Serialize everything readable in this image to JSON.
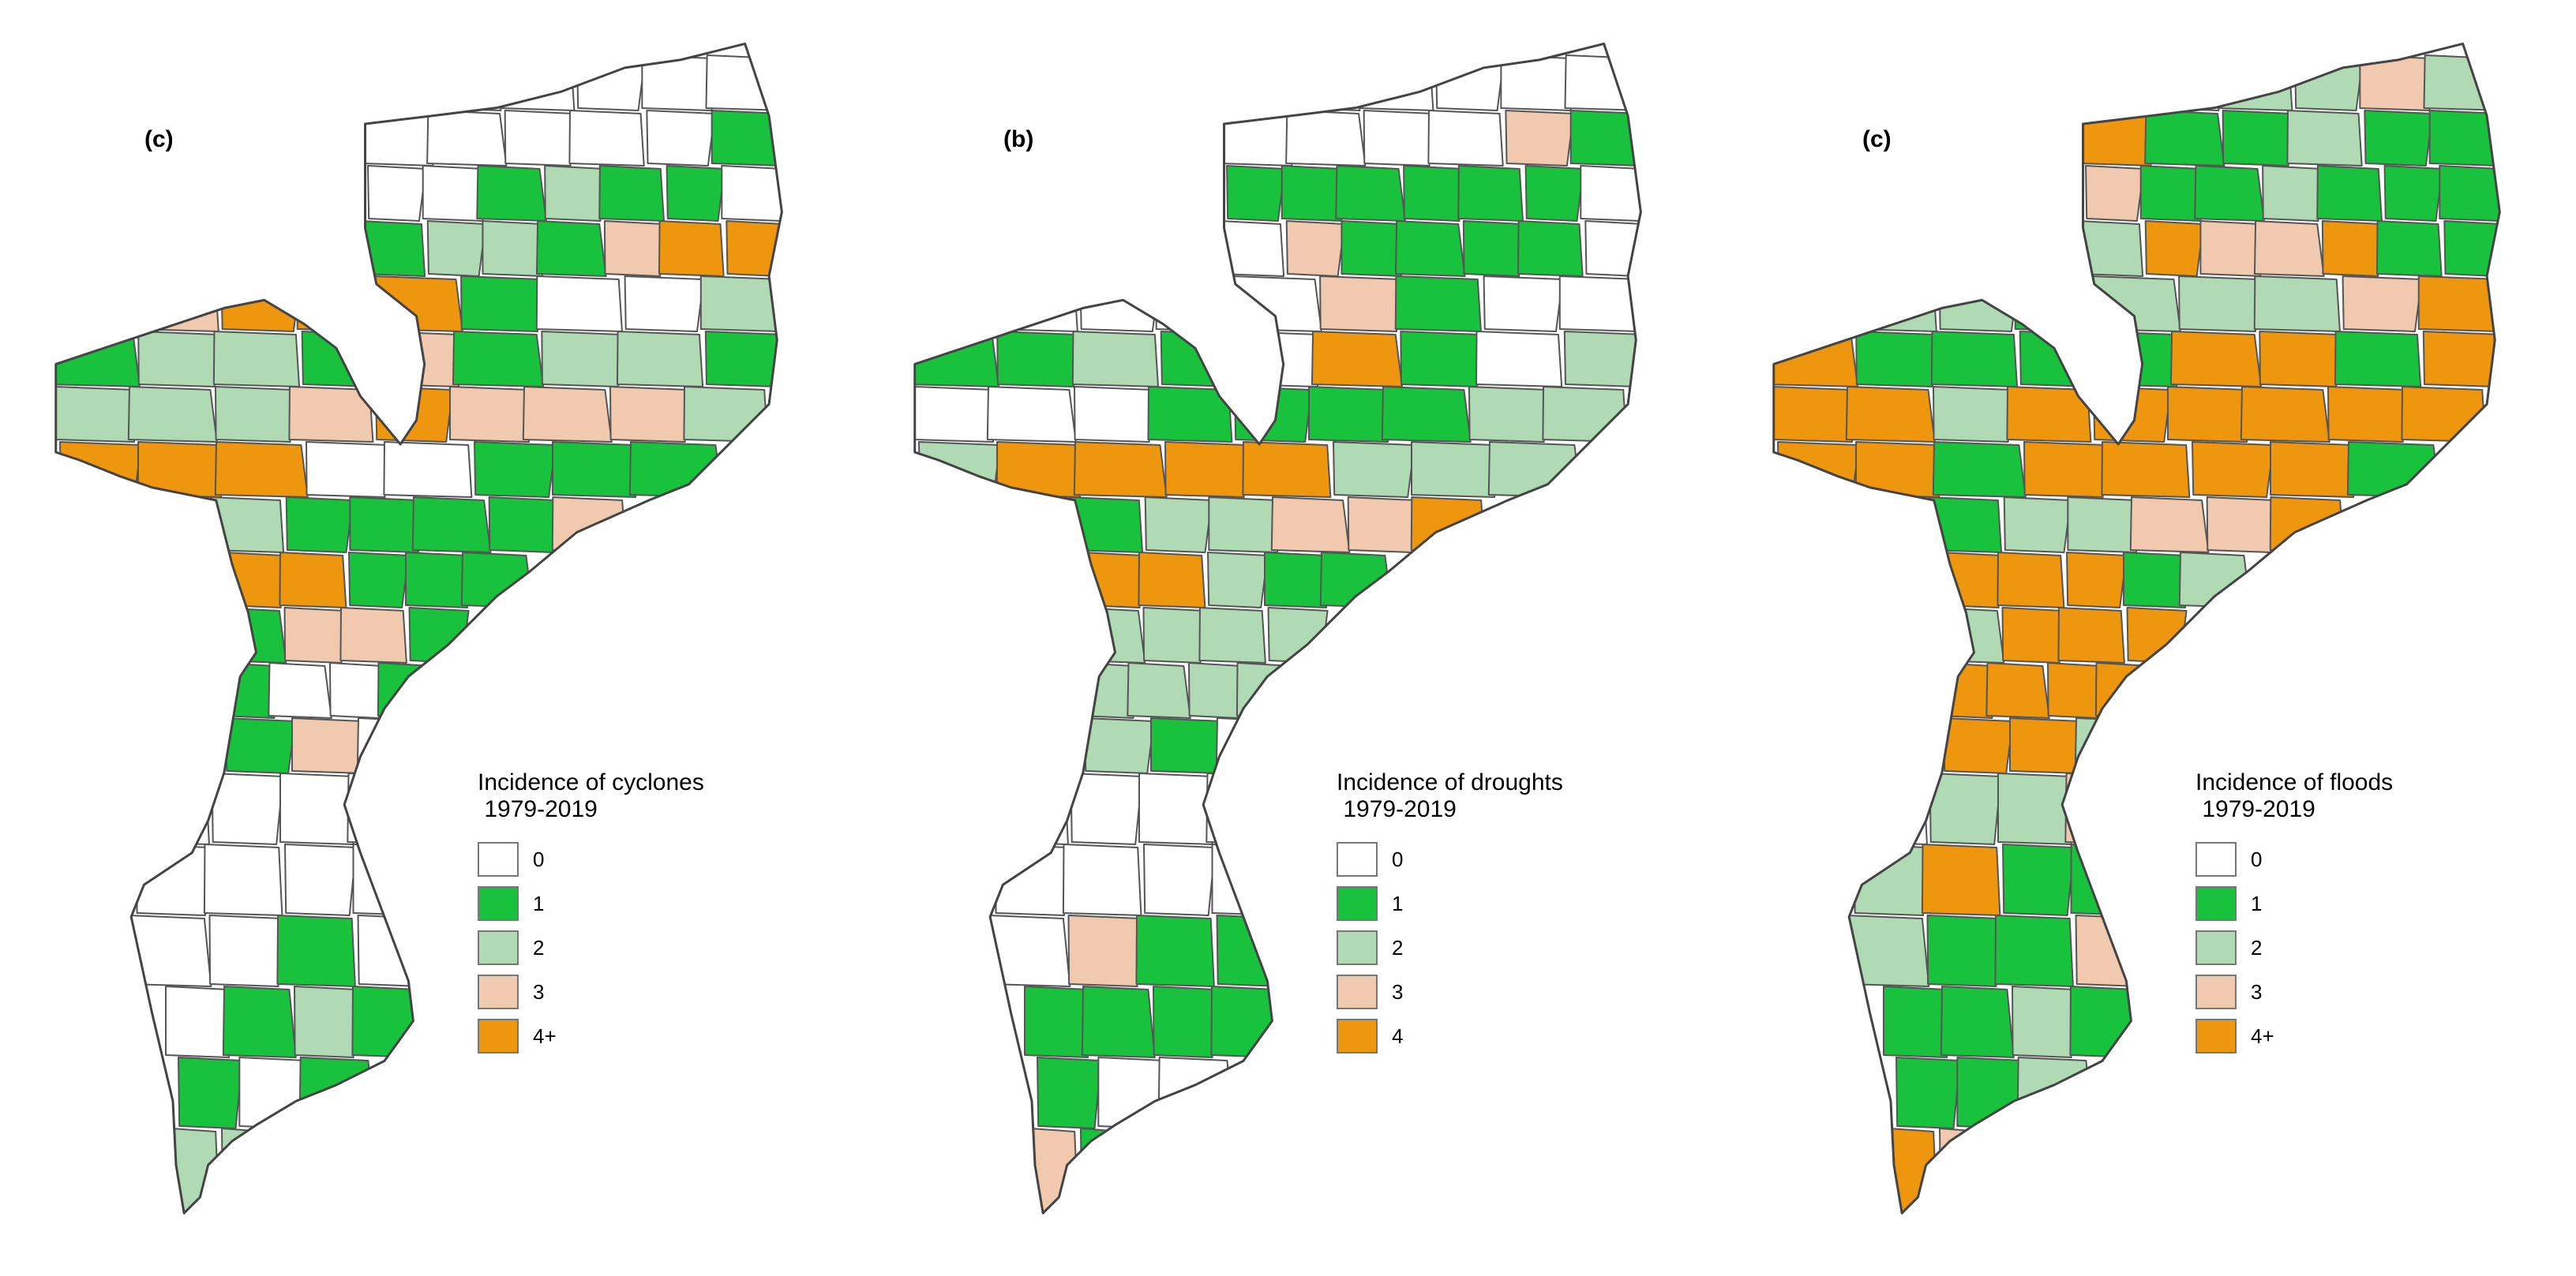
{
  "panels": [
    {
      "letter": "(c)",
      "legend_title": "Incidence of cyclones",
      "legend_subtitle": "1979-2019",
      "legend_labels": [
        "0",
        "1",
        "2",
        "3",
        "4+"
      ],
      "district_categories": [
        0,
        0,
        0,
        0,
        0,
        0,
        0,
        0,
        0,
        0,
        0,
        1,
        0,
        0,
        1,
        2,
        1,
        1,
        0,
        1,
        2,
        2,
        1,
        3,
        4,
        4,
        4,
        3,
        4,
        4,
        4,
        1,
        0,
        0,
        2,
        1,
        2,
        2,
        1,
        3,
        1,
        2,
        2,
        1,
        2,
        2,
        2,
        3,
        4,
        3,
        3,
        3,
        2,
        4,
        4,
        4,
        0,
        0,
        1,
        1,
        1,
        2,
        1,
        1,
        1,
        1,
        3,
        4,
        4,
        1,
        1,
        1,
        1,
        3,
        3,
        1,
        1,
        0,
        0,
        1,
        1,
        3
      ]
    },
    {
      "letter": "(b)",
      "legend_title": "Incidence of droughts",
      "legend_subtitle": "1979-2019",
      "legend_labels": [
        "0",
        "1",
        "2",
        "3",
        "4"
      ],
      "district_categories": [
        0,
        0,
        0,
        0,
        0,
        0,
        0,
        0,
        0,
        0,
        3,
        1,
        1,
        1,
        1,
        1,
        1,
        1,
        0,
        0,
        3,
        1,
        1,
        1,
        1,
        0,
        0,
        0,
        0,
        0,
        0,
        3,
        1,
        0,
        0,
        1,
        1,
        2,
        1,
        0,
        4,
        1,
        0,
        2,
        0,
        0,
        0,
        1,
        1,
        1,
        1,
        2,
        2,
        2,
        4,
        4,
        4,
        4,
        2,
        2,
        2,
        1,
        2,
        2,
        3,
        3,
        4,
        4,
        4,
        2,
        1,
        1,
        2,
        2,
        2,
        2,
        2,
        2,
        2,
        2,
        2,
        1
      ]
    },
    {
      "letter": "(c)",
      "legend_title": "Incidence of floods",
      "legend_subtitle": "1979-2019",
      "legend_labels": [
        "0",
        "1",
        "2",
        "3",
        "4+"
      ],
      "district_categories": [
        2,
        0,
        2,
        2,
        3,
        2,
        4,
        1,
        1,
        2,
        1,
        1,
        3,
        1,
        1,
        2,
        1,
        1,
        1,
        2,
        4,
        3,
        3,
        4,
        1,
        1,
        2,
        2,
        2,
        1,
        2,
        2,
        2,
        3,
        4,
        4,
        1,
        1,
        1,
        1,
        4,
        4,
        1,
        4,
        4,
        4,
        2,
        4,
        4,
        4,
        4,
        4,
        4,
        4,
        4,
        1,
        4,
        4,
        4,
        4,
        1,
        1,
        2,
        2,
        3,
        3,
        4,
        4,
        4,
        4,
        1,
        2,
        2,
        4,
        4,
        4,
        4,
        4,
        4,
        4,
        4,
        4
      ]
    }
  ],
  "colors": {
    "0": "#ffffff",
    "1": "#19c23c",
    "2": "#b0dab4",
    "3": "#f0c9ae",
    "4": "#ee960e"
  }
}
